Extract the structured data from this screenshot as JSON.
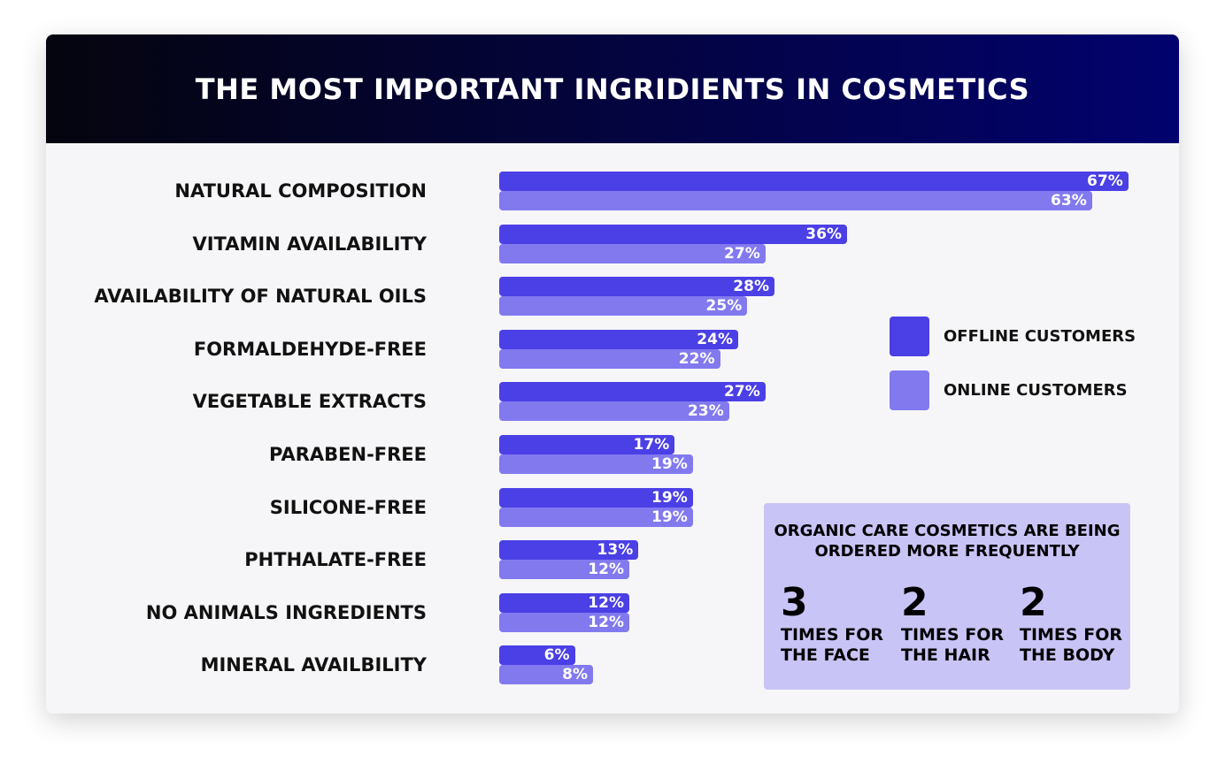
{
  "chart_data": {
    "type": "bar",
    "orientation": "horizontal",
    "title": "THE MOST IMPORTANT INGRIDIENTS IN COSMETICS",
    "categories": [
      "NATURAL COMPOSITION",
      "VITAMIN AVAILABILITY",
      "AVAILABILITY OF NATURAL OILS",
      "FORMALDEHYDE-FREE",
      "VEGETABLE EXTRACTS",
      "PARABEN-FREE",
      "SILICONE-FREE",
      "PHTHALATE-FREE",
      "NO ANIMALS INGREDIENTS",
      "MINERAL AVAILBILITY"
    ],
    "series": [
      {
        "name": "OFFLINE CUSTOMERS",
        "color": "#4b3fe6",
        "values": [
          67,
          36,
          28,
          24,
          27,
          17,
          19,
          13,
          12,
          6
        ]
      },
      {
        "name": "ONLINE CUSTOMERS",
        "color": "#8279ef",
        "values": [
          63,
          27,
          25,
          22,
          23,
          19,
          19,
          12,
          12,
          8
        ]
      }
    ],
    "unit": "%",
    "legend": "right",
    "grid": false
  },
  "callout": {
    "title": "ORGANIC CARE COSMETICS ARE BEING ORDERED MORE FREQUENTLY",
    "stats": [
      {
        "value": "3",
        "label": "TIMES FOR\nTHE FACE"
      },
      {
        "value": "2",
        "label": "TIMES FOR\nTHE HAIR"
      },
      {
        "value": "2",
        "label": "TIMES FOR\nTHE BODY"
      }
    ]
  }
}
